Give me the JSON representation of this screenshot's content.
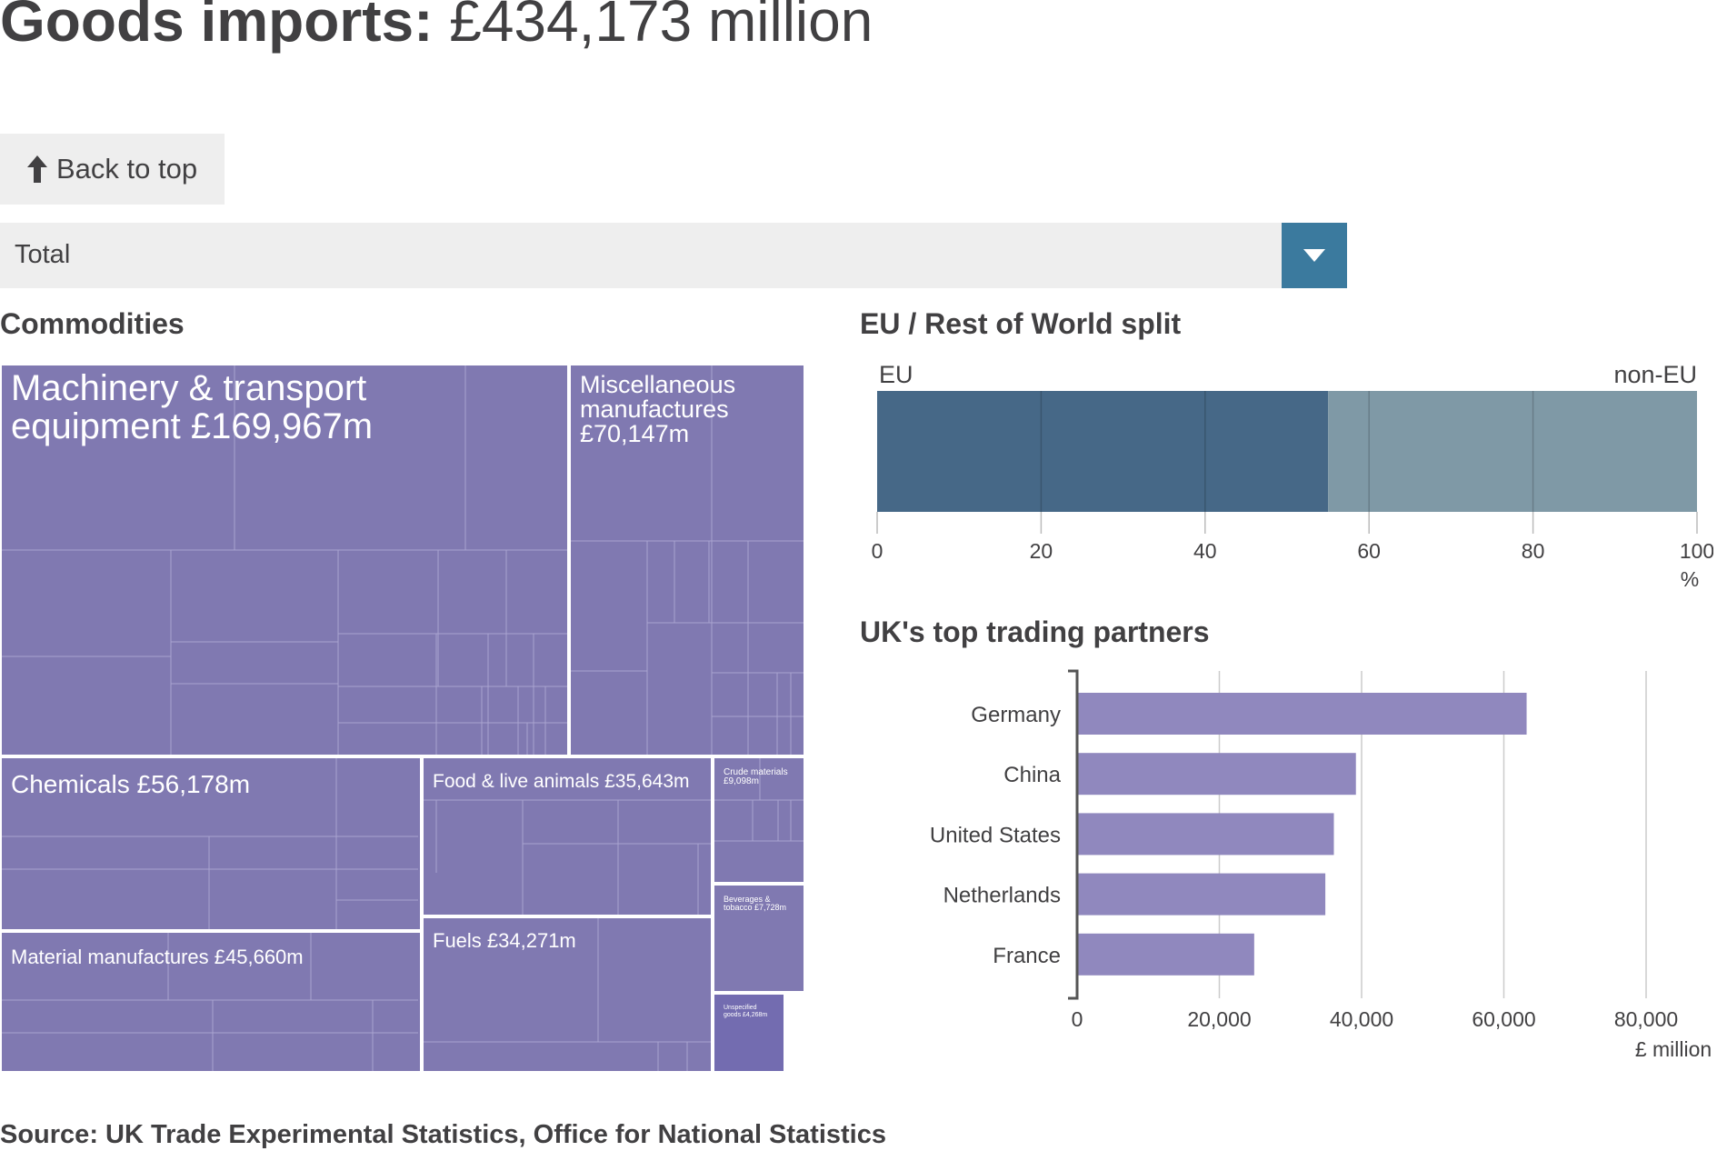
{
  "header": {
    "title_bold": "Goods imports:",
    "title_value": "£434,173 million"
  },
  "back_to_top": {
    "label": "Back to top",
    "icon": "arrow-up-icon"
  },
  "selector": {
    "value": "Total",
    "icon": "caret-down-icon"
  },
  "colors": {
    "treemap": "#8079b1",
    "treemap_dark": "#736cb0",
    "eu": "#466887",
    "non_eu": "#7f99a6",
    "partner_bar": "#9088be",
    "dropdown": "#3b7a9e",
    "text": "#414042"
  },
  "commodities": {
    "heading": "Commodities"
  },
  "eu_split": {
    "heading": "EU / Rest of World split"
  },
  "partners": {
    "heading": "UK's top trading partners"
  },
  "source": "Source: UK Trade Experimental Statistics, Office for National Statistics",
  "chart_data": [
    {
      "type": "treemap",
      "title": "Commodities",
      "nodes": [
        {
          "name": "Machinery & transport equipment",
          "label": "Machinery & transport equipment £169,967m",
          "value": 169967
        },
        {
          "name": "Miscellaneous manufactures",
          "label": "Miscellaneous manufactures £70,147m",
          "value": 70147
        },
        {
          "name": "Chemicals",
          "label": "Chemicals £56,178m",
          "value": 56178
        },
        {
          "name": "Material manufactures",
          "label": "Material manufactures £45,660m",
          "value": 45660
        },
        {
          "name": "Food & live animals",
          "label": "Food & live animals £35,643m",
          "value": 35643
        },
        {
          "name": "Fuels",
          "label": "Fuels £34,271m",
          "value": 34271
        },
        {
          "name": "Crude materials",
          "label": "Crude materials £9,098m",
          "value": 9098
        },
        {
          "name": "Beverages & tobacco",
          "label": "Beverages & tobacco £7,728m",
          "value": 7728
        },
        {
          "name": "Unspecified goods",
          "label": "Unspecified goods £4,268m",
          "value": 4268
        }
      ]
    },
    {
      "type": "bar",
      "orientation": "horizontal-stacked",
      "title": "EU / Rest of World split",
      "categories": [
        "EU",
        "non-EU"
      ],
      "values": [
        55,
        45
      ],
      "xlim": [
        0,
        100
      ],
      "xticks": [
        "0",
        "20",
        "40",
        "60",
        "80",
        "100"
      ],
      "xunit": "%"
    },
    {
      "type": "bar",
      "orientation": "horizontal",
      "title": "UK's top trading partners",
      "categories": [
        "Germany",
        "China",
        "United States",
        "Netherlands",
        "France"
      ],
      "values": [
        63200,
        39200,
        36100,
        34900,
        24900
      ],
      "xlim": [
        0,
        90000
      ],
      "xticks": [
        "0",
        "20,000",
        "40,000",
        "60,000",
        "80,000"
      ],
      "xunit": "£ million"
    }
  ]
}
